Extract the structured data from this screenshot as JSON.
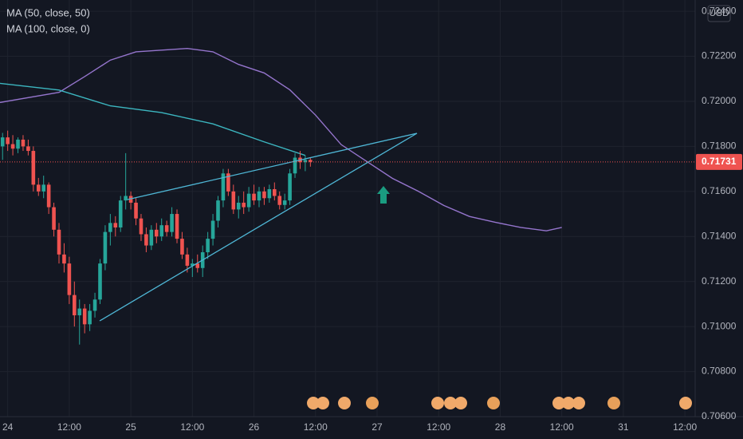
{
  "chart_data": {
    "type": "candlestick",
    "currency": "USD",
    "up_color": "#26a69a",
    "down_color": "#ef5350",
    "grid": true,
    "xlim": [
      -1.5,
      134
    ],
    "ylim": [
      0.706,
      0.7245
    ],
    "yticks": [
      {
        "value": 0.706,
        "label": "0.70600"
      },
      {
        "value": 0.708,
        "label": "0.70800"
      },
      {
        "value": 0.71,
        "label": "0.71000"
      },
      {
        "value": 0.712,
        "label": "0.71200"
      },
      {
        "value": 0.714,
        "label": "0.71400"
      },
      {
        "value": 0.716,
        "label": "0.71600"
      },
      {
        "value": 0.718,
        "label": "0.71800"
      },
      {
        "value": 0.72,
        "label": "0.72000"
      },
      {
        "value": 0.722,
        "label": "0.72200"
      },
      {
        "value": 0.724,
        "label": "0.72400"
      }
    ],
    "xticks": [
      {
        "value": 0,
        "label": "24"
      },
      {
        "value": 12,
        "label": "12:00"
      },
      {
        "value": 24,
        "label": "25"
      },
      {
        "value": 36,
        "label": "12:00"
      },
      {
        "value": 48,
        "label": "26"
      },
      {
        "value": 60,
        "label": "12:00"
      },
      {
        "value": 72,
        "label": "27"
      },
      {
        "value": 84,
        "label": "12:00"
      },
      {
        "value": 96,
        "label": "28"
      },
      {
        "value": 108,
        "label": "12:00"
      },
      {
        "value": 120,
        "label": "31"
      },
      {
        "value": 132,
        "label": "12:00"
      }
    ],
    "last_price": {
      "value": 0.71731,
      "label": "0.71731"
    },
    "x": [
      -1,
      0,
      1,
      2,
      3,
      4,
      5,
      6,
      7,
      8,
      9,
      10,
      11,
      12,
      13,
      14,
      15,
      16,
      17,
      18,
      19,
      20,
      21,
      22,
      23,
      24,
      25,
      26,
      27,
      28,
      29,
      30,
      31,
      32,
      33,
      34,
      35,
      36,
      37,
      38,
      39,
      40,
      41,
      42,
      43,
      44,
      45,
      46,
      47,
      48,
      49,
      50,
      51,
      52,
      53,
      54,
      55,
      56,
      57,
      58,
      59
    ],
    "open": [
      0.718,
      0.7184,
      0.7181,
      0.7179,
      0.7183,
      0.718,
      0.7178,
      0.7163,
      0.716,
      0.7163,
      0.7153,
      0.7143,
      0.7132,
      0.7128,
      0.7114,
      0.7105,
      0.7108,
      0.7101,
      0.7107,
      0.7112,
      0.7128,
      0.7142,
      0.7146,
      0.7144,
      0.7156,
      0.7158,
      0.7155,
      0.7148,
      0.7141,
      0.7136,
      0.7143,
      0.714,
      0.7145,
      0.7142,
      0.715,
      0.7139,
      0.7132,
      0.7127,
      0.7128,
      0.7126,
      0.7133,
      0.7139,
      0.7147,
      0.7156,
      0.7168,
      0.716,
      0.7152,
      0.7155,
      0.7153,
      0.7159,
      0.7156,
      0.716,
      0.7157,
      0.7161,
      0.7158,
      0.7154,
      0.7156,
      0.7168,
      0.7175,
      0.7173,
      0.7174
    ],
    "high": [
      0.7186,
      0.7187,
      0.7185,
      0.7184,
      0.7185,
      0.7183,
      0.718,
      0.7166,
      0.7167,
      0.7164,
      0.7155,
      0.7146,
      0.7137,
      0.7131,
      0.712,
      0.7112,
      0.711,
      0.711,
      0.7115,
      0.713,
      0.7145,
      0.715,
      0.7149,
      0.7158,
      0.7177,
      0.716,
      0.7157,
      0.715,
      0.7144,
      0.7145,
      0.7146,
      0.7148,
      0.7147,
      0.7153,
      0.7152,
      0.7142,
      0.7135,
      0.713,
      0.7132,
      0.7136,
      0.7142,
      0.715,
      0.7158,
      0.717,
      0.717,
      0.7163,
      0.7158,
      0.716,
      0.7162,
      0.7163,
      0.7162,
      0.7162,
      0.7163,
      0.7164,
      0.716,
      0.7159,
      0.717,
      0.7177,
      0.7178,
      0.7176,
      0.7175
    ],
    "low": [
      0.7174,
      0.7178,
      0.7176,
      0.7177,
      0.7178,
      0.7176,
      0.716,
      0.7158,
      0.7157,
      0.715,
      0.714,
      0.7128,
      0.7124,
      0.711,
      0.71,
      0.7092,
      0.7097,
      0.7098,
      0.7104,
      0.711,
      0.7125,
      0.7136,
      0.714,
      0.7142,
      0.7152,
      0.7152,
      0.7145,
      0.7138,
      0.7133,
      0.7134,
      0.7137,
      0.7138,
      0.714,
      0.714,
      0.7137,
      0.713,
      0.7124,
      0.7122,
      0.7124,
      0.7122,
      0.713,
      0.7136,
      0.7144,
      0.7153,
      0.7158,
      0.715,
      0.7148,
      0.715,
      0.7151,
      0.7154,
      0.7153,
      0.7154,
      0.7155,
      0.7156,
      0.7152,
      0.7152,
      0.7154,
      0.7166,
      0.717,
      0.7169,
      0.7171
    ],
    "close": [
      0.7184,
      0.7181,
      0.7179,
      0.7183,
      0.718,
      0.7178,
      0.7163,
      0.716,
      0.7163,
      0.7153,
      0.7143,
      0.7132,
      0.7128,
      0.7114,
      0.7105,
      0.7108,
      0.7101,
      0.7107,
      0.7112,
      0.7128,
      0.7142,
      0.7146,
      0.7144,
      0.7156,
      0.7158,
      0.7155,
      0.7148,
      0.7141,
      0.7136,
      0.7143,
      0.714,
      0.7145,
      0.7142,
      0.715,
      0.7139,
      0.7132,
      0.7127,
      0.7128,
      0.7126,
      0.7133,
      0.7139,
      0.7147,
      0.7156,
      0.7168,
      0.716,
      0.7152,
      0.7155,
      0.7153,
      0.7159,
      0.7156,
      0.716,
      0.7157,
      0.7161,
      0.7158,
      0.7154,
      0.7156,
      0.7168,
      0.7175,
      0.7173,
      0.7174,
      0.71731
    ],
    "series": [
      {
        "name": "MA (50, close, 50)",
        "color": "#9575cd",
        "x": [
          -1.5,
          10,
          15,
          20,
          25,
          35,
          40,
          45,
          50,
          55,
          60,
          65,
          70,
          75,
          80,
          85,
          90,
          95,
          100,
          105,
          108
        ],
        "values": [
          0.71995,
          0.7204,
          0.7211,
          0.72183,
          0.7222,
          0.72235,
          0.7222,
          0.72164,
          0.72126,
          0.72051,
          0.71939,
          0.71808,
          0.71733,
          0.71658,
          0.71601,
          0.71538,
          0.71489,
          0.71463,
          0.7144,
          0.71425,
          0.7144
        ]
      },
      {
        "name": "MA (100, close, 0)",
        "color": "#3cb6c0",
        "x": [
          -1.5,
          10,
          20,
          30,
          40,
          50,
          58
        ],
        "values": [
          0.7208,
          0.7205,
          0.7198,
          0.7195,
          0.719,
          0.7182,
          0.7176
        ]
      }
    ]
  }
}
